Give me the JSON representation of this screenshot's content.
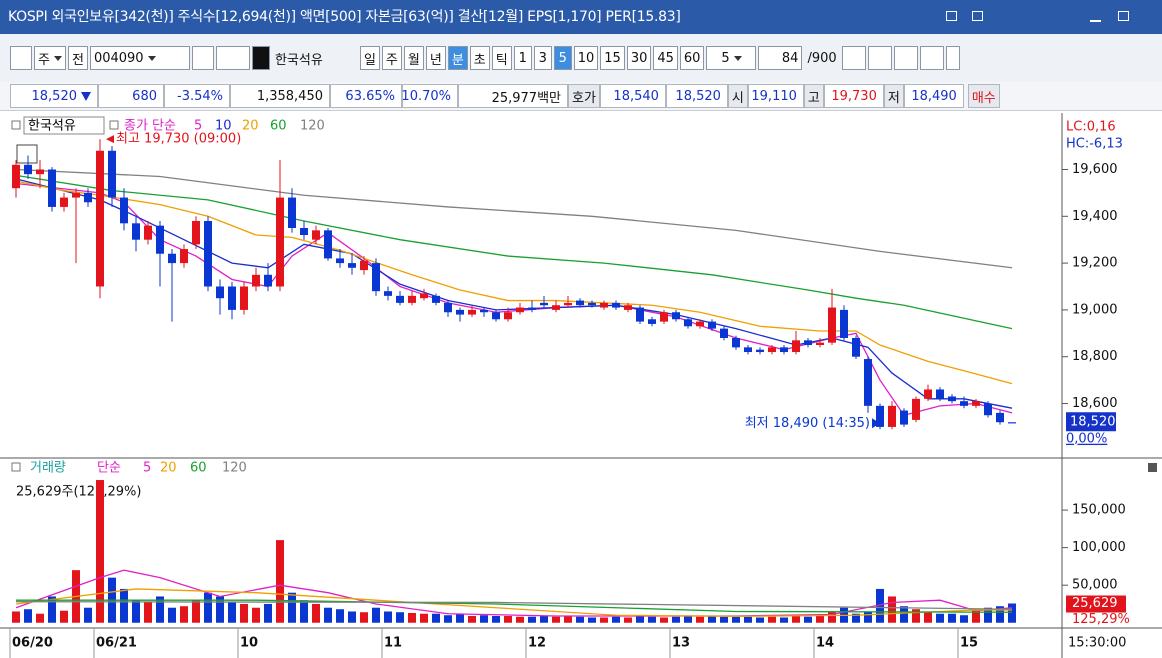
{
  "header": {
    "title": "KOSPI 외국인보유[342(천)] 주식수[12,694(천)] 액면[500] 자본금[63(억)] 결산[12월] EPS[1,170] PER[15.83]"
  },
  "toolbar": {
    "items": [
      "주",
      "전",
      "004090",
      "한국석유",
      "일",
      "주",
      "월",
      "년",
      "분",
      "초",
      "틱",
      "1",
      "3",
      "5",
      "10",
      "15",
      "30",
      "45",
      "60",
      "5",
      "84",
      "/900"
    ]
  },
  "quote_bar": {
    "items": [
      "18,520",
      "680",
      "-3.54%",
      "1,358,450",
      "63.65%",
      "10.70%",
      "25,977백만",
      "호가",
      "18,540",
      "18,520",
      "시",
      "19,110",
      "고",
      "19,730",
      "저",
      "18,490",
      "매수"
    ]
  },
  "time": "15:30:00",
  "chart_data": [
    {
      "type": "candlestick",
      "name": "한국석유",
      "legend_label": "종가 단순",
      "categories": [
        "06/20",
        null,
        null,
        null,
        null,
        null,
        null,
        "06/21",
        null,
        null,
        null,
        null,
        null,
        null,
        null,
        null,
        null,
        null,
        null,
        "10",
        null,
        null,
        null,
        null,
        null,
        null,
        null,
        null,
        null,
        null,
        null,
        "11",
        null,
        null,
        null,
        null,
        null,
        null,
        null,
        null,
        null,
        null,
        null,
        "12",
        null,
        null,
        null,
        null,
        null,
        null,
        null,
        null,
        null,
        null,
        null,
        "13",
        null,
        null,
        null,
        null,
        null,
        null,
        null,
        null,
        null,
        null,
        null,
        "14",
        null,
        null,
        null,
        null,
        null,
        null,
        null,
        null,
        null,
        null,
        null,
        "15",
        null,
        null,
        null,
        null
      ],
      "open": [
        19520,
        19620,
        19580,
        19600,
        19440,
        19480,
        19500,
        19100,
        19680,
        19480,
        19370,
        19300,
        19360,
        19240,
        19200,
        19280,
        19380,
        19100,
        19100,
        19000,
        19100,
        19150,
        19100,
        19480,
        19350,
        19300,
        19340,
        19220,
        19200,
        19170,
        19200,
        19080,
        19060,
        19030,
        19050,
        19060,
        19030,
        19000,
        18980,
        19000,
        18990,
        18960,
        18990,
        19010,
        19030,
        19000,
        19020,
        19040,
        19030,
        19010,
        19030,
        19000,
        19010,
        18960,
        18950,
        18990,
        18960,
        18930,
        18950,
        18920,
        18880,
        18840,
        18830,
        18820,
        18840,
        18820,
        18870,
        18850,
        18860,
        19000,
        18880,
        18790,
        18590,
        18500,
        18570,
        18530,
        18620,
        18660,
        18630,
        18610,
        18590,
        18600,
        18560,
        18520
      ],
      "high": [
        19640,
        19660,
        19640,
        19610,
        19500,
        19520,
        19520,
        19730,
        19700,
        19520,
        19400,
        19380,
        19380,
        19260,
        19280,
        19400,
        19400,
        19130,
        19120,
        19120,
        19180,
        19200,
        19640,
        19520,
        19380,
        19360,
        19350,
        19260,
        19240,
        19230,
        19220,
        19100,
        19080,
        19080,
        19090,
        19070,
        19040,
        19010,
        19020,
        19010,
        19000,
        19010,
        19030,
        19040,
        19060,
        19040,
        19060,
        19050,
        19040,
        19040,
        19040,
        19030,
        19020,
        18970,
        19000,
        19000,
        18970,
        18960,
        18960,
        18930,
        18890,
        18850,
        18840,
        18850,
        18850,
        18910,
        18880,
        18880,
        19090,
        19020,
        18890,
        18800,
        18600,
        18610,
        18580,
        18630,
        18680,
        18670,
        18640,
        18630,
        18620,
        18610,
        18570,
        18520
      ],
      "low": [
        19480,
        19560,
        19520,
        19420,
        19420,
        19200,
        19440,
        19050,
        19440,
        19340,
        19250,
        19280,
        19100,
        18950,
        19180,
        19260,
        19080,
        18980,
        18960,
        18980,
        19080,
        19080,
        19080,
        19330,
        19300,
        19280,
        19210,
        19180,
        19150,
        19150,
        19060,
        19040,
        19020,
        19020,
        19040,
        19020,
        18970,
        18950,
        18970,
        18970,
        18950,
        18950,
        18980,
        18990,
        19010,
        18990,
        19010,
        19010,
        19010,
        19000,
        19000,
        18990,
        18940,
        18930,
        18940,
        18950,
        18920,
        18920,
        18910,
        18870,
        18830,
        18810,
        18810,
        18810,
        18810,
        18810,
        18840,
        18840,
        18850,
        18870,
        18790,
        18560,
        18490,
        18490,
        18500,
        18520,
        18610,
        18610,
        18600,
        18580,
        18580,
        18540,
        18510,
        18520
      ],
      "close": [
        19620,
        19580,
        19600,
        19440,
        19480,
        19500,
        19460,
        19680,
        19480,
        19370,
        19300,
        19360,
        19240,
        19200,
        19260,
        19380,
        19100,
        19050,
        19000,
        19100,
        19150,
        19100,
        19480,
        19350,
        19320,
        19340,
        19220,
        19200,
        19180,
        19210,
        19080,
        19060,
        19030,
        19060,
        19070,
        19030,
        18990,
        18980,
        19000,
        18990,
        18960,
        18990,
        19010,
        19000,
        19020,
        19020,
        19030,
        19020,
        19020,
        19030,
        19010,
        19020,
        18950,
        18940,
        18990,
        18960,
        18930,
        18950,
        18920,
        18880,
        18840,
        18820,
        18820,
        18840,
        18820,
        18870,
        18850,
        18860,
        19010,
        18880,
        18800,
        18590,
        18500,
        18590,
        18510,
        18620,
        18660,
        18620,
        18610,
        18590,
        18610,
        18550,
        18520,
        18520
      ],
      "up_color": "#e3141c",
      "down_color": "#0a37d2",
      "ylim": [
        18380,
        19820
      ],
      "yticks": [
        {
          "value": 18600,
          "label": "18,600"
        },
        {
          "value": 18800,
          "label": "18,800"
        },
        {
          "value": 19000,
          "label": "19,000"
        },
        {
          "value": 19200,
          "label": "19,200"
        },
        {
          "value": 19400,
          "label": "19,400"
        },
        {
          "value": 19600,
          "label": "19,600"
        }
      ],
      "series": [
        {
          "name": "5",
          "color": "#e020c8",
          "x": [
            0,
            7,
            9,
            12,
            15,
            18,
            21,
            23,
            26,
            29,
            32,
            36,
            40,
            45,
            50,
            55,
            60,
            64,
            68,
            70,
            72,
            74,
            77,
            80,
            83
          ],
          "values": [
            19540,
            19500,
            19460,
            19300,
            19230,
            19130,
            19100,
            19230,
            19330,
            19220,
            19100,
            19030,
            18990,
            19010,
            19020,
            18970,
            18880,
            18830,
            18880,
            18900,
            18700,
            18550,
            18590,
            18600,
            18560
          ]
        },
        {
          "name": "10",
          "color": "#1a2ccf",
          "x": [
            0,
            7,
            10,
            14,
            18,
            21,
            24,
            28,
            32,
            36,
            40,
            45,
            50,
            55,
            60,
            65,
            68,
            71,
            73,
            76,
            79,
            83
          ],
          "values": [
            19560,
            19470,
            19400,
            19300,
            19200,
            19180,
            19280,
            19240,
            19110,
            19040,
            19000,
            19010,
            19020,
            18980,
            18920,
            18850,
            18880,
            18840,
            18730,
            18620,
            18620,
            18580
          ]
        },
        {
          "name": "20",
          "color": "#f0a000",
          "x": [
            0,
            4,
            7,
            12,
            16,
            20,
            23,
            27,
            33,
            37,
            41,
            45,
            53,
            57,
            62,
            67,
            70,
            72,
            76,
            79,
            83
          ],
          "values": [
            19550,
            19510,
            19490,
            19450,
            19400,
            19320,
            19310,
            19255,
            19150,
            19085,
            19040,
            19040,
            19020,
            18990,
            18930,
            18910,
            18910,
            18850,
            18780,
            18740,
            18685
          ]
        },
        {
          "name": "60",
          "color": "#18a030",
          "x": [
            0,
            8,
            16,
            24,
            32,
            41,
            49,
            58,
            66,
            70,
            74,
            83
          ],
          "values": [
            19575,
            19510,
            19470,
            19380,
            19300,
            19230,
            19200,
            19150,
            19085,
            19050,
            19020,
            18920
          ]
        },
        {
          "name": "120",
          "color": "#808080",
          "x": [
            0,
            12,
            24,
            36,
            48,
            60,
            72,
            83
          ],
          "values": [
            19600,
            19570,
            19490,
            19440,
            19400,
            19340,
            19250,
            19180
          ]
        }
      ],
      "annotations": [
        "최고 19,730 (09:00)",
        "최저 18,490 (14:35)"
      ],
      "side_labels": [
        "LC:0,16",
        "HC:-6,13",
        "18,520",
        "0,00%"
      ]
    },
    {
      "type": "bar",
      "title": "거래량",
      "legend_label": "단순",
      "info": "25,629주(125,29%)",
      "values": [
        15000,
        18000,
        12000,
        35000,
        16000,
        70000,
        20000,
        190000,
        60000,
        45000,
        30000,
        28000,
        35000,
        20000,
        22000,
        30000,
        40000,
        35000,
        28000,
        25000,
        20000,
        25000,
        110000,
        40000,
        30000,
        25000,
        20000,
        18000,
        15000,
        14000,
        20000,
        15000,
        14000,
        13000,
        12000,
        12000,
        10000,
        11000,
        9000,
        10000,
        9000,
        9000,
        8000,
        8000,
        9000,
        8000,
        9000,
        8000,
        7000,
        7000,
        8000,
        7000,
        9000,
        8000,
        7000,
        8000,
        9000,
        8000,
        9000,
        8000,
        9000,
        8000,
        7000,
        8000,
        7000,
        9000,
        8000,
        9000,
        15000,
        20000,
        12000,
        15000,
        45000,
        35000,
        22000,
        18000,
        15000,
        12000,
        12000,
        10000,
        18000,
        20000,
        22000,
        25629
      ],
      "ylim": [
        -7000,
        214000
      ],
      "yticks": [
        {
          "value": 50000,
          "label": "50,000"
        },
        {
          "value": 100000,
          "label": "100,000"
        },
        {
          "value": 150000,
          "label": "150,000"
        }
      ],
      "series": [
        {
          "name": "5",
          "color": "#e020c8",
          "x": [
            0,
            7,
            9,
            12,
            17,
            22,
            26,
            30,
            36,
            45,
            60,
            68,
            73,
            77,
            80,
            83
          ],
          "values": [
            20000,
            60000,
            70000,
            60000,
            35000,
            50000,
            40000,
            25000,
            12000,
            9000,
            9000,
            11000,
            27000,
            30000,
            16000,
            20000
          ]
        },
        {
          "name": "20",
          "color": "#f0a000",
          "x": [
            0,
            10,
            20,
            30,
            40,
            50,
            60,
            70,
            80,
            83
          ],
          "values": [
            25000,
            45000,
            40000,
            30000,
            20000,
            10000,
            8500,
            10000,
            17000,
            17000
          ]
        },
        {
          "name": "60",
          "color": "#18a030",
          "x": [
            0,
            20,
            40,
            60,
            83
          ],
          "values": [
            30000,
            30000,
            25000,
            15000,
            14000
          ]
        },
        {
          "name": "120",
          "color": "#808080",
          "x": [
            0,
            40,
            83
          ],
          "values": [
            28000,
            27000,
            18000
          ]
        }
      ],
      "side_labels": [
        "25,629",
        "125,29%"
      ]
    }
  ]
}
